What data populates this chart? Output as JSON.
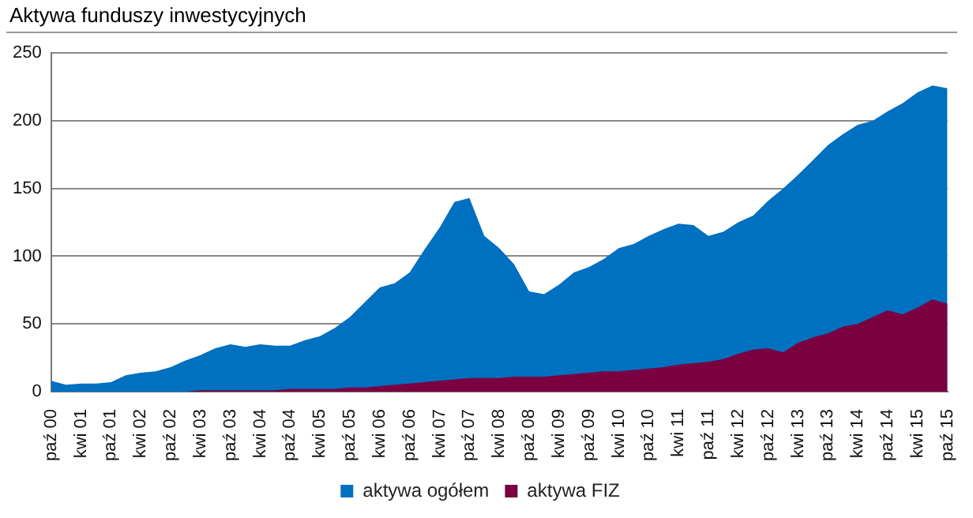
{
  "chart_data": {
    "type": "area",
    "title": "Aktywa funduszy inwestycyjnych",
    "categories": [
      "paź 00",
      null,
      "kwi 01",
      null,
      "paź 01",
      null,
      "kwi 02",
      null,
      "paź 02",
      null,
      "kwi 03",
      null,
      "paź 03",
      null,
      "kwi 04",
      null,
      "paź 04",
      null,
      "kwi 05",
      null,
      "paź 05",
      null,
      "kwi 06",
      null,
      "paź 06",
      null,
      "kwi 07",
      null,
      "paź 07",
      null,
      "kwi 08",
      null,
      "paź 08",
      null,
      "kwi 09",
      null,
      "paź 09",
      null,
      "kwi 10",
      null,
      "paź 10",
      null,
      "kwi 11",
      null,
      "paź 11",
      null,
      "kwi 12",
      null,
      "paź 12",
      null,
      "kwi 13",
      null,
      "paź 13",
      null,
      "kwi 14",
      null,
      "paź 14",
      null,
      "kwi 15",
      null,
      "paź 15"
    ],
    "series": [
      {
        "name": "aktywa ogółem",
        "color": "#0070c0",
        "values": [
          8,
          5,
          6,
          6,
          7,
          12,
          14,
          15,
          18,
          23,
          27,
          32,
          35,
          33,
          35,
          34,
          34,
          38,
          41,
          47,
          55,
          66,
          77,
          80,
          88,
          105,
          121,
          140,
          143,
          115,
          106,
          94,
          74,
          72,
          79,
          88,
          92,
          98,
          106,
          109,
          115,
          120,
          124,
          123,
          115,
          118,
          125,
          130,
          141,
          150,
          160,
          171,
          182,
          190,
          197,
          200,
          207,
          213,
          221,
          226,
          224
        ]
      },
      {
        "name": "aktywa FIZ",
        "color": "#7a0040",
        "values": [
          0,
          0,
          0,
          0,
          0,
          0,
          0,
          0,
          0,
          0,
          1,
          1,
          1,
          1,
          1,
          1,
          2,
          2,
          2,
          2,
          3,
          3,
          4,
          5,
          6,
          7,
          8,
          9,
          10,
          10,
          10,
          11,
          11,
          11,
          12,
          13,
          14,
          15,
          15,
          16,
          17,
          18,
          20,
          21,
          22,
          24,
          28,
          31,
          32,
          29,
          36,
          40,
          43,
          48,
          50,
          55,
          60,
          57,
          62,
          68,
          65
        ]
      }
    ],
    "ylim": [
      0,
      250
    ],
    "yticks": [
      0,
      50,
      100,
      150,
      200,
      250
    ],
    "grid": "y",
    "legend": "bottom"
  }
}
